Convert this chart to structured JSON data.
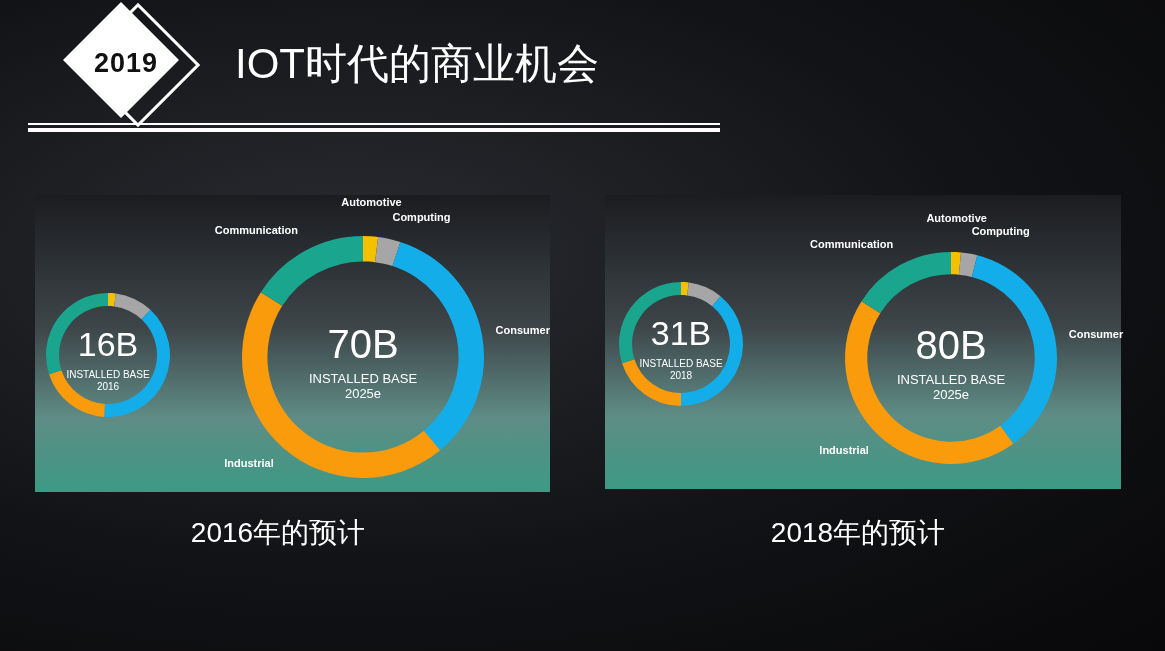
{
  "chart_data": [
    {
      "type": "other",
      "title": "IOT时代的商业机会",
      "annotations": [
        "2019"
      ]
    },
    {
      "type": "donut",
      "title": "16B",
      "subtitle": "INSTALLED BASE",
      "annotations": [
        "2016"
      ],
      "categories": [
        null,
        null,
        null,
        null,
        null
      ],
      "values": [
        2,
        10,
        39,
        19,
        30
      ],
      "colors": [
        "#f5c000",
        "#a6a6a6",
        "#13aee9",
        "#f99b0b",
        "#1aa58f"
      ]
    },
    {
      "type": "donut",
      "title": "70B",
      "subtitle": "INSTALLED BASE",
      "annotations": [
        "2025e"
      ],
      "categories": [
        "Automotive",
        "Computing",
        "Consumer",
        "Industrial",
        "Communication"
      ],
      "values": [
        2,
        3,
        34,
        45,
        16
      ],
      "colors": [
        "#f5c000",
        "#a6a6a6",
        "#13aee9",
        "#f99b0b",
        "#1aa58f"
      ]
    },
    {
      "type": "donut",
      "title": "31B",
      "subtitle": "INSTALLED BASE",
      "annotations": [
        "2018"
      ],
      "categories": [
        null,
        null,
        null,
        null,
        null
      ],
      "values": [
        2,
        9,
        39,
        20,
        30
      ],
      "colors": [
        "#f5c000",
        "#a6a6a6",
        "#13aee9",
        "#f99b0b",
        "#1aa58f"
      ]
    },
    {
      "type": "donut",
      "title": "80B",
      "subtitle": "INSTALLED BASE",
      "annotations": [
        "2025e"
      ],
      "categories": [
        "Automotive",
        "Computing",
        "Consumer",
        "Industrial",
        "Communication"
      ],
      "values": [
        1.5,
        2.5,
        36,
        44,
        16
      ],
      "colors": [
        "#f5c000",
        "#a6a6a6",
        "#13aee9",
        "#f99b0b",
        "#1aa58f"
      ]
    },
    {
      "type": "other",
      "title": "2016年的预计"
    },
    {
      "type": "other",
      "title": "2018年的预计"
    }
  ]
}
